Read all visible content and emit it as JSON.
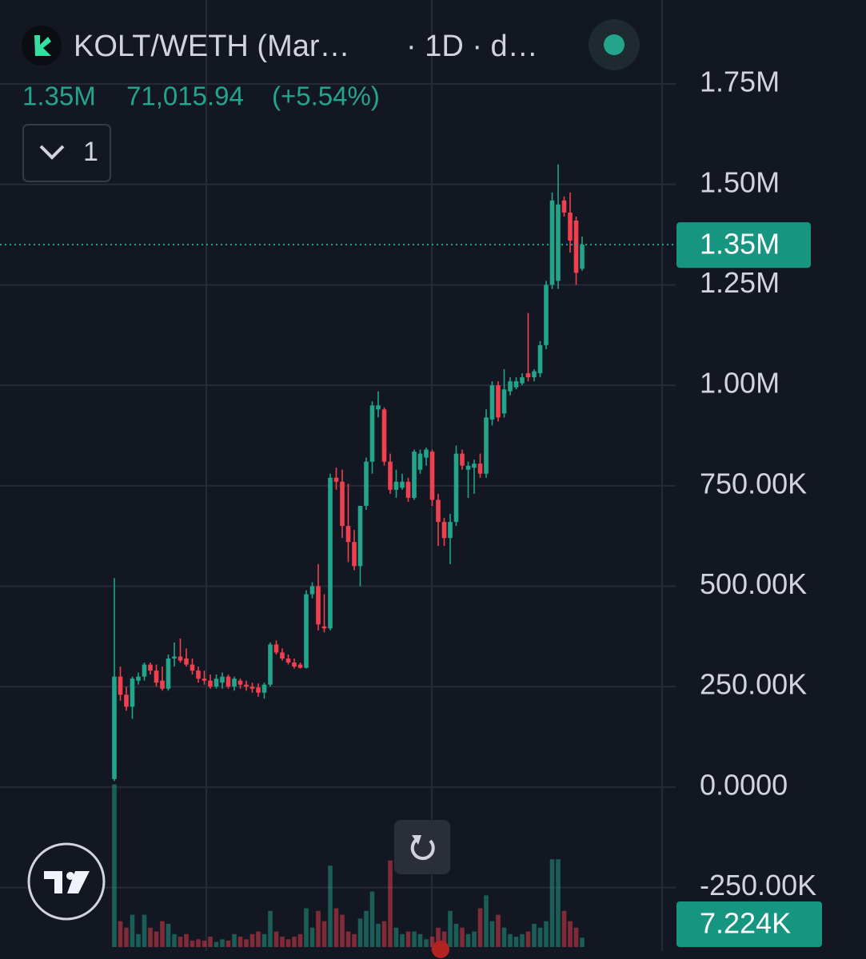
{
  "chart_data": {
    "type": "candlestick",
    "title": "KOLT/WETH (Mar…",
    "subtitle": "· 1D · d…",
    "legend_values": [
      "1.35M",
      "71,015.94",
      "(+5.54%)"
    ],
    "collapse_button": "1",
    "up_color": "#22a58b",
    "down_color": "#f0404f",
    "grid": true,
    "ylim": [
      -398000,
      1959000
    ],
    "yticks": [
      {
        "value": 1750000,
        "label": "1.75M"
      },
      {
        "value": 1500000,
        "label": "1.50M"
      },
      {
        "value": 1250000,
        "label": "1.25M"
      },
      {
        "value": 1000000,
        "label": "1.00M"
      },
      {
        "value": 750000,
        "label": "750.00K"
      },
      {
        "value": 500000,
        "label": "500.00K"
      },
      {
        "value": 250000,
        "label": "250.00K"
      },
      {
        "value": 0,
        "label": "0.0000"
      },
      {
        "value": -250000,
        "label": "-250.00K"
      }
    ],
    "last_price": {
      "value": 1350000,
      "label": "1.35M"
    },
    "last_volume": {
      "value": 7224,
      "label": "7.224K"
    },
    "volume_ylim": [
      0,
      130000
    ],
    "open": [
      20000,
      275000,
      230000,
      200000,
      265000,
      275000,
      305000,
      290000,
      265000,
      245000,
      320000,
      325000,
      320000,
      305000,
      290000,
      270000,
      265000,
      250000,
      260000,
      275000,
      250000,
      265000,
      255000,
      250000,
      248000,
      235000,
      255000,
      355000,
      335000,
      320000,
      310000,
      305000,
      297000,
      480000,
      500000,
      400000,
      395000,
      770000,
      760000,
      650000,
      610000,
      550000,
      700000,
      810000,
      940000,
      940000,
      810000,
      740000,
      745000,
      760000,
      720000,
      790000,
      820000,
      835000,
      715000,
      660000,
      620000,
      660000,
      830000,
      790000,
      795000,
      805000,
      780000,
      915000,
      1000000,
      930000,
      985000,
      995000,
      1005000,
      1030000,
      1020000,
      1030000,
      1100000,
      1250000,
      1260000,
      1460000,
      1430000,
      1410000,
      1290000
    ],
    "high": [
      520000,
      300000,
      250000,
      275000,
      285000,
      310000,
      310000,
      305000,
      300000,
      330000,
      360000,
      370000,
      345000,
      320000,
      300000,
      290000,
      280000,
      280000,
      285000,
      280000,
      275000,
      270000,
      265000,
      260000,
      258000,
      260000,
      360000,
      365000,
      345000,
      330000,
      320000,
      310000,
      490000,
      510000,
      555000,
      480000,
      780000,
      795000,
      790000,
      755000,
      640000,
      700000,
      820000,
      960000,
      985000,
      945000,
      830000,
      790000,
      780000,
      770000,
      840000,
      840000,
      845000,
      840000,
      730000,
      670000,
      680000,
      850000,
      840000,
      810000,
      815000,
      830000,
      940000,
      1010000,
      1010000,
      1040000,
      1020000,
      1020000,
      1030000,
      1180000,
      1040000,
      1110000,
      1260000,
      1480000,
      1550000,
      1470000,
      1480000,
      1420000,
      1370000
    ],
    "low": [
      15000,
      215000,
      190000,
      170000,
      255000,
      265000,
      280000,
      250000,
      240000,
      240000,
      300000,
      310000,
      300000,
      280000,
      260000,
      255000,
      245000,
      245000,
      245000,
      245000,
      240000,
      245000,
      240000,
      235000,
      225000,
      220000,
      250000,
      330000,
      315000,
      305000,
      295000,
      295000,
      295000,
      470000,
      390000,
      385000,
      390000,
      740000,
      620000,
      560000,
      540000,
      500000,
      690000,
      780000,
      920000,
      800000,
      730000,
      720000,
      740000,
      710000,
      715000,
      780000,
      800000,
      700000,
      600000,
      600000,
      555000,
      650000,
      790000,
      720000,
      730000,
      770000,
      770000,
      900000,
      910000,
      920000,
      975000,
      990000,
      1000000,
      1010000,
      1010000,
      1020000,
      1090000,
      1240000,
      1240000,
      1420000,
      1330000,
      1250000,
      1285000
    ],
    "close": [
      275000,
      230000,
      200000,
      270000,
      275000,
      305000,
      290000,
      260000,
      245000,
      320000,
      325000,
      315000,
      305000,
      290000,
      270000,
      265000,
      250000,
      270000,
      275000,
      250000,
      270000,
      255000,
      250000,
      245000,
      235000,
      255000,
      355000,
      335000,
      320000,
      310000,
      300000,
      297000,
      480000,
      500000,
      405000,
      395000,
      770000,
      760000,
      650000,
      610000,
      550000,
      700000,
      810000,
      950000,
      950000,
      810000,
      740000,
      760000,
      760000,
      720000,
      835000,
      830000,
      840000,
      715000,
      660000,
      620000,
      660000,
      830000,
      800000,
      800000,
      805000,
      780000,
      920000,
      1000000,
      920000,
      990000,
      1010000,
      1010000,
      1020000,
      1020000,
      1035000,
      1100000,
      1250000,
      1460000,
      1450000,
      1430000,
      1360000,
      1280000,
      1350000
    ],
    "volume": [
      126000,
      20000,
      15000,
      25000,
      10000,
      25000,
      15000,
      12000,
      20000,
      18000,
      10000,
      8000,
      10000,
      5000,
      6000,
      5000,
      8000,
      4000,
      6000,
      5000,
      10000,
      8000,
      6000,
      10000,
      12000,
      10000,
      28000,
      12000,
      8000,
      6000,
      8000,
      10000,
      30000,
      15000,
      28000,
      20000,
      63000,
      30000,
      25000,
      12000,
      10000,
      22000,
      28000,
      43000,
      18000,
      20000,
      67000,
      15000,
      10000,
      12000,
      12000,
      10000,
      6000,
      8000,
      15000,
      12000,
      28000,
      18000,
      15000,
      10000,
      12000,
      30000,
      40000,
      20000,
      25000,
      15000,
      10000,
      8000,
      10000,
      12000,
      18000,
      15000,
      20000,
      68000,
      68000,
      28000,
      20000,
      15000,
      7224
    ]
  }
}
